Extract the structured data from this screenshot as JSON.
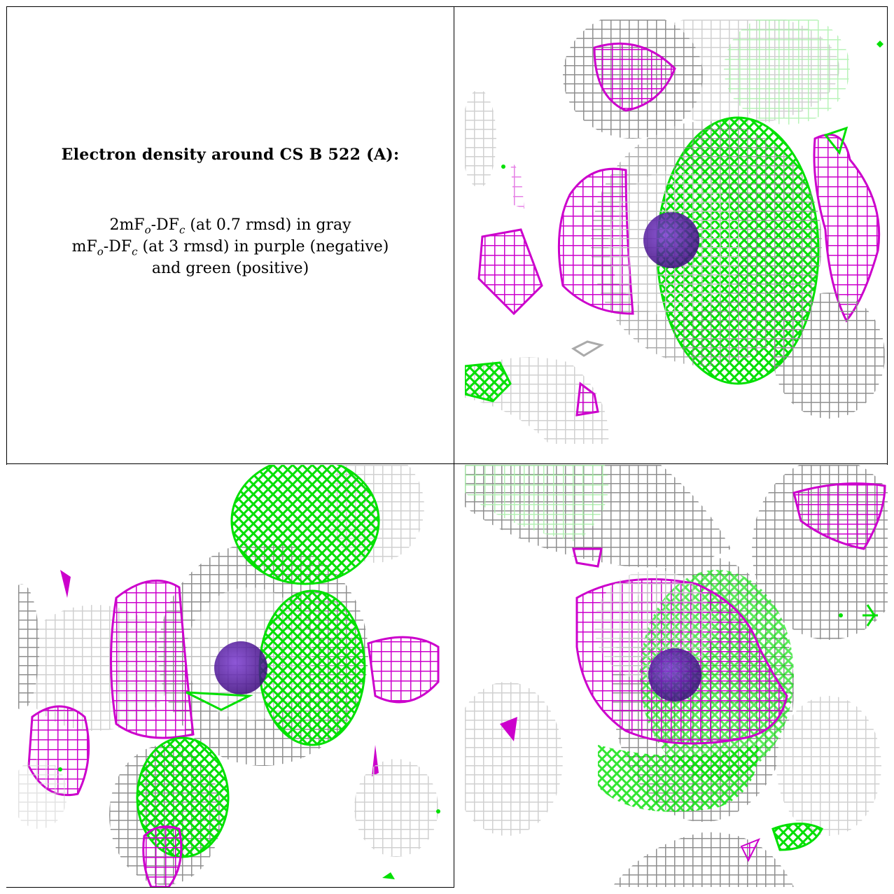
{
  "title": "Electron density around CS B 522 (A):",
  "legend": {
    "line1": {
      "a": "2mF",
      "b": "-DF",
      "c": " (at 0.7 rmsd) in gray"
    },
    "line2": {
      "a": "mF",
      "b": "-DF",
      "c": " (at 3 rmsd) in purple (negative)"
    },
    "line3": "and green (positive)",
    "sub_o": "o",
    "sub_c": "c"
  },
  "colors": {
    "gray_map": "#9e9e9e",
    "gray_light": "#d4d4d4",
    "negative": "#cc00cc",
    "positive": "#00e000",
    "atom": "#5a1aa0"
  },
  "views": [
    "top-right",
    "bottom-left",
    "bottom-right"
  ]
}
